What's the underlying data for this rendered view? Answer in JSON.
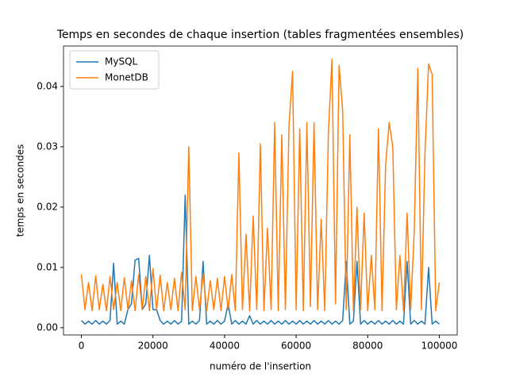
{
  "chart_data": {
    "type": "line",
    "title": "Temps en secondes de chaque insertion (tables fragmentées ensembles)",
    "xlabel": "numéro de l'insertion",
    "ylabel": "temps en secondes",
    "x": [
      0,
      1000,
      2000,
      3000,
      4000,
      5000,
      6000,
      7000,
      8000,
      9000,
      10000,
      11000,
      12000,
      13000,
      14000,
      15000,
      16000,
      17000,
      18000,
      19000,
      20000,
      21000,
      22000,
      23000,
      24000,
      25000,
      26000,
      27000,
      28000,
      29000,
      30000,
      31000,
      32000,
      33000,
      34000,
      35000,
      36000,
      37000,
      38000,
      39000,
      40000,
      41000,
      42000,
      43000,
      44000,
      45000,
      46000,
      47000,
      48000,
      49000,
      50000,
      51000,
      52000,
      53000,
      54000,
      55000,
      56000,
      57000,
      58000,
      59000,
      60000,
      61000,
      62000,
      63000,
      64000,
      65000,
      66000,
      67000,
      68000,
      69000,
      70000,
      71000,
      72000,
      73000,
      74000,
      75000,
      76000,
      77000,
      78000,
      79000,
      80000,
      81000,
      82000,
      83000,
      84000,
      85000,
      86000,
      87000,
      88000,
      89000,
      90000,
      91000,
      92000,
      93000,
      94000,
      95000,
      96000,
      97000,
      98000,
      99000,
      100000
    ],
    "series": [
      {
        "name": "MySQL",
        "color": "#1f77b4",
        "values": [
          0.0012,
          0.0006,
          0.0011,
          0.0006,
          0.0012,
          0.0006,
          0.0011,
          0.0006,
          0.0012,
          0.0107,
          0.0006,
          0.0011,
          0.0006,
          0.003,
          0.004,
          0.0112,
          0.0115,
          0.003,
          0.004,
          0.012,
          0.003,
          0.003,
          0.0012,
          0.0006,
          0.0011,
          0.0006,
          0.0012,
          0.0006,
          0.0011,
          0.022,
          0.0006,
          0.0011,
          0.0006,
          0.0012,
          0.011,
          0.0006,
          0.0011,
          0.0006,
          0.0012,
          0.0006,
          0.0011,
          0.004,
          0.0006,
          0.0012,
          0.0006,
          0.0011,
          0.0006,
          0.002,
          0.0006,
          0.0012,
          0.0006,
          0.0011,
          0.0006,
          0.0012,
          0.0006,
          0.0011,
          0.0006,
          0.0012,
          0.0006,
          0.0011,
          0.0006,
          0.0012,
          0.0006,
          0.0011,
          0.0006,
          0.0012,
          0.0006,
          0.0011,
          0.0006,
          0.0012,
          0.0006,
          0.0011,
          0.0006,
          0.0012,
          0.011,
          0.0006,
          0.0011,
          0.011,
          0.0006,
          0.0012,
          0.0006,
          0.0011,
          0.0006,
          0.0012,
          0.0006,
          0.0011,
          0.0006,
          0.0012,
          0.0006,
          0.0011,
          0.0006,
          0.011,
          0.0006,
          0.0012,
          0.0006,
          0.0011,
          0.0006,
          0.01,
          0.0006,
          0.0011,
          0.0006
        ]
      },
      {
        "name": "MonetDB",
        "color": "#ff7f0e",
        "values": [
          0.0088,
          0.003,
          0.0075,
          0.0028,
          0.0086,
          0.003,
          0.0072,
          0.0028,
          0.0085,
          0.003,
          0.0075,
          0.0028,
          0.0083,
          0.003,
          0.0078,
          0.0028,
          0.0088,
          0.003,
          0.0085,
          0.0028,
          0.0098,
          0.003,
          0.0087,
          0.0028,
          0.0075,
          0.003,
          0.0082,
          0.0028,
          0.0092,
          0.003,
          0.03,
          0.0028,
          0.0085,
          0.003,
          0.009,
          0.0028,
          0.0078,
          0.003,
          0.0082,
          0.0028,
          0.0085,
          0.003,
          0.0088,
          0.0028,
          0.029,
          0.003,
          0.0155,
          0.0028,
          0.0185,
          0.003,
          0.0305,
          0.0028,
          0.0165,
          0.003,
          0.034,
          0.0028,
          0.032,
          0.003,
          0.0335,
          0.0425,
          0.003,
          0.033,
          0.0028,
          0.034,
          0.0035,
          0.034,
          0.003,
          0.018,
          0.0028,
          0.032,
          0.0445,
          0.004,
          0.0435,
          0.036,
          0.003,
          0.032,
          0.0028,
          0.02,
          0.003,
          0.019,
          0.0028,
          0.012,
          0.003,
          0.033,
          0.0028,
          0.027,
          0.034,
          0.03,
          0.003,
          0.012,
          0.0028,
          0.019,
          0.003,
          0.016,
          0.043,
          0.003,
          0.029,
          0.0437,
          0.042,
          0.0028,
          0.0075
        ]
      }
    ],
    "xlim": [
      -5000,
      105000
    ],
    "ylim": [
      -0.0012,
      0.0467
    ],
    "xticks": [
      0,
      20000,
      40000,
      60000,
      80000,
      100000
    ],
    "yticks": [
      {
        "value": 0,
        "label": "0.00"
      },
      {
        "value": 0.01,
        "label": "0.01"
      },
      {
        "value": 0.02,
        "label": "0.02"
      },
      {
        "value": 0.03,
        "label": "0.03"
      },
      {
        "value": 0.04,
        "label": "0.04"
      }
    ],
    "legend": "upper left"
  }
}
